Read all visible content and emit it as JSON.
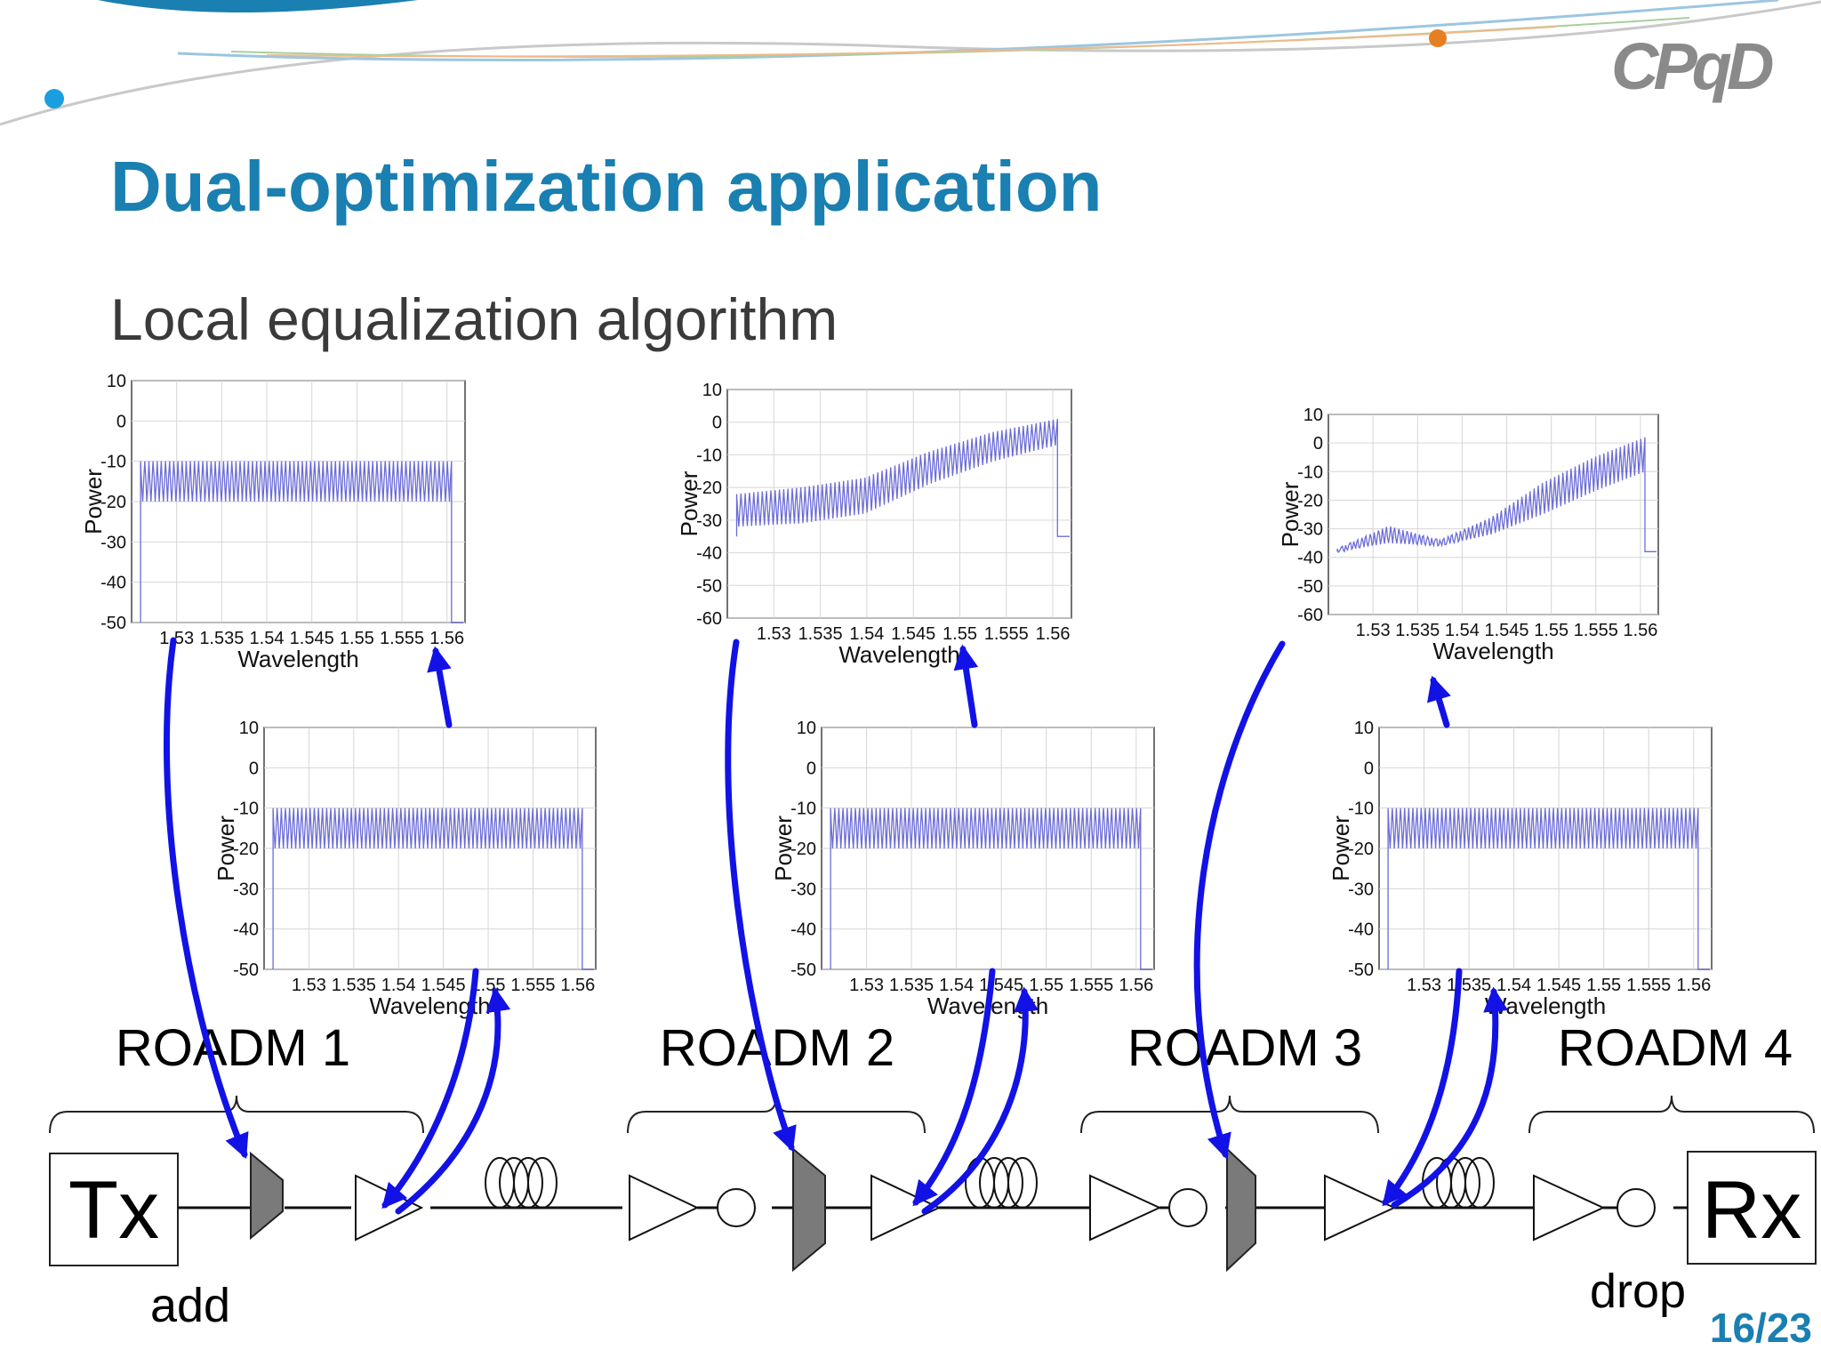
{
  "slide": {
    "title": "Dual-optimization application",
    "subtitle": "Local equalization algorithm",
    "page_number": "16/23",
    "logo_text": "CPqD"
  },
  "colors": {
    "title": "#1a7fb1",
    "arrow": "#1212e6",
    "spectrum": "#6c6cd8",
    "demux": "#7a7a7a"
  },
  "icons": [
    "logo-icon",
    "amplifier-icon",
    "fiber-coil-icon",
    "demux-icon",
    "power-monitor-icon",
    "brace-icon"
  ],
  "chain": {
    "tx_label": "Tx",
    "rx_label": "Rx",
    "add_label": "add",
    "drop_label": "drop",
    "roadm_labels": [
      "ROADM  1",
      "ROADM  2",
      "ROADM  3",
      "ROADM  4"
    ]
  },
  "chart_data": [
    {
      "type": "line",
      "id": "input-roadm1",
      "xlabel": "Wavelength",
      "ylabel": "Power",
      "xlim": [
        1.525,
        1.562
      ],
      "ylim": [
        -50,
        10
      ],
      "x_ticks": [
        "1.53",
        "1.535",
        "1.54",
        "1.545",
        "1.55",
        "1.555",
        "1.56"
      ],
      "y_ticks": [
        "10",
        "0",
        "-10",
        "-20",
        "-30",
        "-40",
        "-50"
      ],
      "wl_start": 1.526,
      "wl_end": 1.5605,
      "envelope_low": [
        -20,
        -20
      ],
      "envelope_high": [
        -10,
        -10
      ],
      "floor": -50
    },
    {
      "type": "line",
      "id": "input-roadm2",
      "xlabel": "Wavelength",
      "ylabel": "Power",
      "xlim": [
        1.525,
        1.562
      ],
      "ylim": [
        -60,
        10
      ],
      "x_ticks": [
        "1.53",
        "1.535",
        "1.54",
        "1.545",
        "1.55",
        "1.555",
        "1.56"
      ],
      "y_ticks": [
        "10",
        "0",
        "-10",
        "-20",
        "-30",
        "-40",
        "-50",
        "-60"
      ],
      "wl_start": 1.526,
      "wl_end": 1.5605,
      "envelope_low": [
        -32,
        -31,
        -28,
        -19,
        -12,
        -7
      ],
      "envelope_high": [
        -22,
        -20,
        -17,
        -9,
        -3,
        1
      ],
      "floor": -35
    },
    {
      "type": "line",
      "id": "input-roadm3",
      "xlabel": "Wavelength",
      "ylabel": "Power",
      "xlim": [
        1.525,
        1.562
      ],
      "ylim": [
        -60,
        10
      ],
      "x_ticks": [
        "1.53",
        "1.535",
        "1.54",
        "1.545",
        "1.55",
        "1.555",
        "1.56"
      ],
      "y_ticks": [
        "10",
        "0",
        "-10",
        "-20",
        "-30",
        "-40",
        "-50",
        "-60"
      ],
      "wl_start": 1.526,
      "wl_end": 1.5605,
      "envelope_low": [
        -38,
        -35,
        -36,
        -32,
        -25,
        -17,
        -10
      ],
      "envelope_high": [
        -37,
        -29,
        -34,
        -26,
        -14,
        -5,
        2
      ],
      "floor": -38
    },
    {
      "type": "line",
      "id": "equalized-roadm1",
      "xlabel": "Wavelength",
      "ylabel": "Power",
      "xlim": [
        1.525,
        1.562
      ],
      "ylim": [
        -50,
        10
      ],
      "x_ticks": [
        "1.53",
        "1.535",
        "1.54",
        "1.545",
        "1.55",
        "1.555",
        "1.56"
      ],
      "y_ticks": [
        "10",
        "0",
        "-10",
        "-20",
        "-30",
        "-40",
        "-50"
      ],
      "wl_start": 1.526,
      "wl_end": 1.5605,
      "envelope_low": [
        -20,
        -20
      ],
      "envelope_high": [
        -10,
        -10
      ],
      "floor": -50
    },
    {
      "type": "line",
      "id": "equalized-roadm2",
      "xlabel": "Wavelength",
      "ylabel": "Power",
      "xlim": [
        1.525,
        1.562
      ],
      "ylim": [
        -50,
        10
      ],
      "x_ticks": [
        "1.53",
        "1.535",
        "1.54",
        "1.545",
        "1.55",
        "1.555",
        "1.56"
      ],
      "y_ticks": [
        "10",
        "0",
        "-10",
        "-20",
        "-30",
        "-40",
        "-50"
      ],
      "wl_start": 1.526,
      "wl_end": 1.5605,
      "envelope_low": [
        -20,
        -20
      ],
      "envelope_high": [
        -10,
        -10
      ],
      "floor": -50
    },
    {
      "type": "line",
      "id": "equalized-roadm3",
      "xlabel": "Wavelength",
      "ylabel": "Power",
      "xlim": [
        1.525,
        1.562
      ],
      "ylim": [
        -50,
        10
      ],
      "x_ticks": [
        "1.53",
        "1.535",
        "1.54",
        "1.545",
        "1.55",
        "1.555",
        "1.56"
      ],
      "y_ticks": [
        "10",
        "0",
        "-10",
        "-20",
        "-30",
        "-40",
        "-50"
      ],
      "wl_start": 1.526,
      "wl_end": 1.5605,
      "envelope_low": [
        -20,
        -20
      ],
      "envelope_high": [
        -10,
        -10
      ],
      "floor": -50
    }
  ]
}
